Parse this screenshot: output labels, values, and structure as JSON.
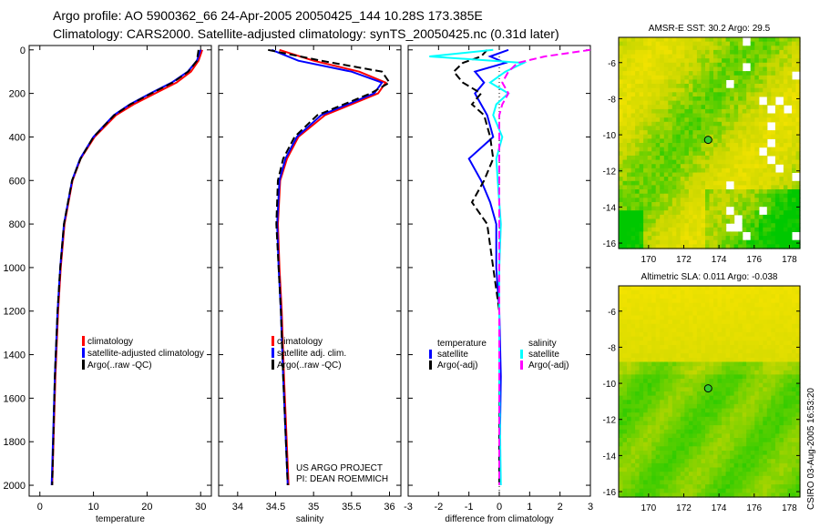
{
  "titles": {
    "line1": "Argo profile: AO 5900362_66 24-Apr-2005 20050425_144 10.28S 173.385E",
    "line2": "Climatology: CARS2000. Satellite-adjusted climatology: synTS_20050425.nc (0.31d later)"
  },
  "side_label": "CSIRO 03-Aug-2005 16:53:20",
  "colors": {
    "climatology": "#ff0000",
    "satellite": "#0000ff",
    "argo": "#000000",
    "sal_satellite": "#00ffff",
    "sal_argo": "#ff00ff"
  },
  "chart_data": [
    {
      "type": "line",
      "xlabel": "temperature",
      "xlim": [
        -2,
        32
      ],
      "ylim": [
        2050,
        -20
      ],
      "xticks": [
        0,
        10,
        20,
        30
      ],
      "yticks": [
        0,
        200,
        400,
        600,
        800,
        1000,
        1200,
        1400,
        1600,
        1800,
        2000
      ],
      "depth": [
        0,
        50,
        100,
        150,
        200,
        250,
        300,
        400,
        500,
        600,
        800,
        1000,
        1200,
        1500,
        2000
      ],
      "series": [
        {
          "name": "climatology",
          "style": "solid",
          "color": "#ff0000",
          "values": [
            30.3,
            29.6,
            28.2,
            25.5,
            21.5,
            17.5,
            14.2,
            10.2,
            7.6,
            6.1,
            4.6,
            3.9,
            3.4,
            2.9,
            2.3
          ]
        },
        {
          "name": "satellite-adjusted climatology",
          "style": "solid",
          "color": "#0000ff",
          "values": [
            30.0,
            29.3,
            27.6,
            24.6,
            20.6,
            16.8,
            13.8,
            10.0,
            7.5,
            6.0,
            4.5,
            3.8,
            3.3,
            2.8,
            2.2
          ]
        },
        {
          "name": "Argo(..raw -QC)",
          "style": "dashed",
          "color": "#000000",
          "values": [
            29.6,
            29.3,
            27.7,
            24.8,
            20.8,
            16.9,
            13.9,
            10.0,
            7.6,
            6.0,
            4.5,
            3.8,
            3.3,
            2.8,
            2.3
          ]
        }
      ],
      "legend": [
        "climatology",
        "satellite-adjusted climatology",
        "Argo(..raw -QC)"
      ]
    },
    {
      "type": "line",
      "xlabel": "salinity",
      "xlim": [
        33.75,
        36.15
      ],
      "ylim": [
        2050,
        -20
      ],
      "xticks": [
        34,
        34.5,
        35,
        35.5,
        36
      ],
      "depth": [
        0,
        50,
        100,
        150,
        200,
        250,
        300,
        400,
        500,
        600,
        800,
        1000,
        1200,
        1500,
        2000
      ],
      "series": [
        {
          "name": "climatology",
          "style": "solid",
          "color": "#ff0000",
          "values": [
            34.55,
            35.0,
            35.6,
            35.95,
            35.85,
            35.5,
            35.15,
            34.8,
            34.65,
            34.56,
            34.53,
            34.55,
            34.58,
            34.61,
            34.67
          ]
        },
        {
          "name": "satellite adj. clim.",
          "style": "solid",
          "color": "#0000ff",
          "values": [
            34.45,
            34.8,
            35.5,
            35.9,
            35.8,
            35.45,
            35.1,
            34.78,
            34.63,
            34.55,
            34.52,
            34.54,
            34.57,
            34.6,
            34.66
          ]
        },
        {
          "name": "Argo(..raw -QC)",
          "style": "dashed",
          "color": "#000000",
          "values": [
            34.4,
            35.1,
            35.9,
            36.0,
            35.75,
            35.4,
            35.05,
            34.75,
            34.6,
            34.53,
            34.51,
            34.54,
            34.57,
            34.6,
            34.66
          ]
        }
      ],
      "legend": [
        "climatology",
        "satellite adj. clim.",
        "Argo(..raw -QC)"
      ],
      "annotations": [
        "US ARGO PROJECT",
        "PI: DEAN ROEMMICH"
      ]
    },
    {
      "type": "line",
      "xlabel": "difference from climatology",
      "xlim": [
        -3,
        3
      ],
      "ylim": [
        2050,
        -20
      ],
      "xticks": [
        -3,
        -2,
        -1,
        0,
        1,
        2,
        3
      ],
      "depth": [
        0,
        30,
        60,
        100,
        150,
        200,
        250,
        300,
        400,
        500,
        600,
        700,
        800,
        1000,
        1200,
        1500,
        2000
      ],
      "series": [
        {
          "name": "temperature satellite",
          "style": "solid",
          "color": "#0000ff",
          "values": [
            0.3,
            -0.3,
            0.2,
            -0.8,
            -0.5,
            -0.8,
            -0.6,
            -0.4,
            -0.2,
            -1.0,
            -0.6,
            -0.3,
            -0.1,
            -0.1,
            0,
            0.05,
            0
          ]
        },
        {
          "name": "temperature Argo(-adj)",
          "style": "dashed",
          "color": "#000000",
          "values": [
            -0.4,
            -0.6,
            -1.2,
            -1.5,
            -1.2,
            -0.6,
            -0.9,
            -0.5,
            -0.3,
            -0.2,
            -0.5,
            -0.9,
            -0.4,
            -0.2,
            0,
            0,
            0
          ]
        },
        {
          "name": "salinity satellite",
          "style": "solid",
          "color": "#00ffff",
          "values": [
            -0.2,
            -2.3,
            0.8,
            0.2,
            -0.3,
            0.3,
            -0.1,
            -0.2,
            0.1,
            -0.1,
            -0.05,
            0,
            0.05,
            0,
            0,
            0,
            0.05
          ]
        },
        {
          "name": "salinity Argo(-adj)",
          "style": "dashed",
          "color": "#ff00ff",
          "values": [
            3.0,
            1.5,
            0.6,
            0.3,
            0.1,
            0.3,
            0.1,
            0,
            0,
            0,
            0,
            0,
            0,
            0,
            0,
            0,
            0
          ]
        }
      ],
      "legend_left": {
        "heading": "temperature",
        "items": [
          "satellite",
          "Argo(-adj)"
        ]
      },
      "legend_right": {
        "heading": "salinity",
        "items": [
          "satellite",
          "Argo(-adj)"
        ]
      }
    },
    {
      "type": "heatmap",
      "title": "AMSR-E SST: 30.2 Argo: 29.5",
      "xlim": [
        168.3,
        178.6
      ],
      "ylim": [
        -16.3,
        -4.6
      ],
      "xticks": [
        170,
        172,
        174,
        176,
        178
      ],
      "yticks": [
        -6,
        -8,
        -10,
        -12,
        -14,
        -16
      ],
      "marker": [
        173.385,
        -10.28
      ]
    },
    {
      "type": "heatmap",
      "title": "Altimetric SLA: 0.011 Argo: -0.038",
      "xlim": [
        168.3,
        178.6
      ],
      "ylim": [
        -16.3,
        -4.6
      ],
      "xticks": [
        170,
        172,
        174,
        176,
        178
      ],
      "yticks": [
        -6,
        -8,
        -10,
        -12,
        -14,
        -16
      ],
      "marker": [
        173.385,
        -10.28
      ]
    }
  ]
}
